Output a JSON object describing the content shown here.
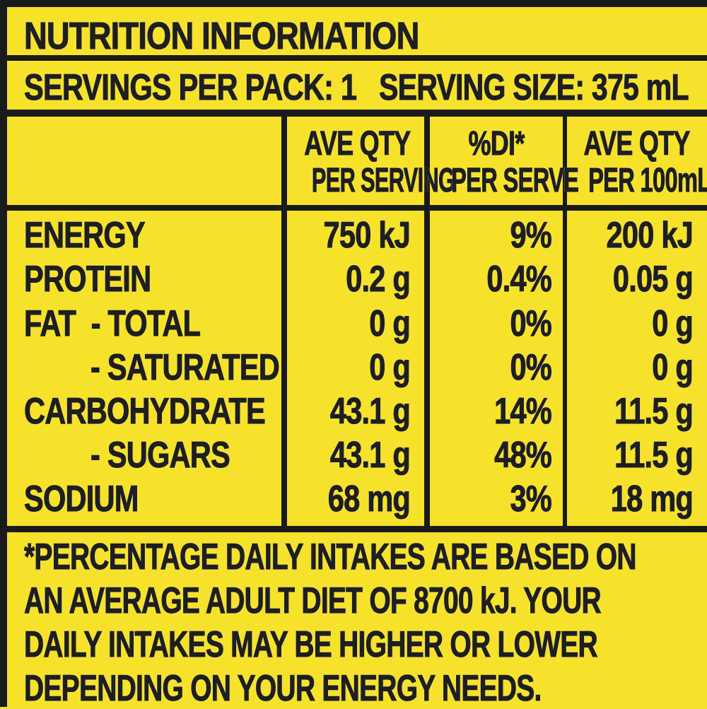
{
  "header": {
    "title": "NUTRITION INFORMATION",
    "servings_per_pack": "SERVINGS PER PACK: 1",
    "serving_size": "SERVING SIZE: 375 mL"
  },
  "columns": {
    "per_serving": [
      "AVE QTY",
      "PER SERVING"
    ],
    "di_per_serve": [
      "%DI*",
      "PER SERVE"
    ],
    "per_100ml": [
      "AVE QTY",
      "PER 100mL"
    ]
  },
  "rows": [
    {
      "label": "ENERGY",
      "per_serving": "750 kJ",
      "di": "9%",
      "per_100ml": "200 kJ"
    },
    {
      "label": "PROTEIN",
      "per_serving": "0.2 g",
      "di": "0.4%",
      "per_100ml": "0.05 g"
    },
    {
      "label": "FAT  - TOTAL",
      "per_serving": "0 g",
      "di": "0%",
      "per_100ml": "0 g"
    },
    {
      "label": "- SATURATED",
      "per_serving": "0 g",
      "di": "0%",
      "per_100ml": "0 g"
    },
    {
      "label": "CARBOHYDRATE",
      "per_serving": "43.1 g",
      "di": "14%",
      "per_100ml": "11.5 g"
    },
    {
      "label": "- SUGARS",
      "per_serving": "43.1 g",
      "di": "48%",
      "per_100ml": "11.5 g"
    },
    {
      "label": "SODIUM",
      "per_serving": "68 mg",
      "di": "3%",
      "per_100ml": "18 mg"
    }
  ],
  "footnote": [
    "*PERCENTAGE DAILY INTAKES ARE BASED ON",
    "AN AVERAGE ADULT DIET OF 8700 kJ. YOUR",
    "DAILY INTAKES MAY BE HIGHER OR LOWER",
    "DEPENDING ON YOUR ENERGY NEEDS."
  ],
  "colors": {
    "background": "#f6e22a",
    "ink": "#1a1a1a"
  }
}
